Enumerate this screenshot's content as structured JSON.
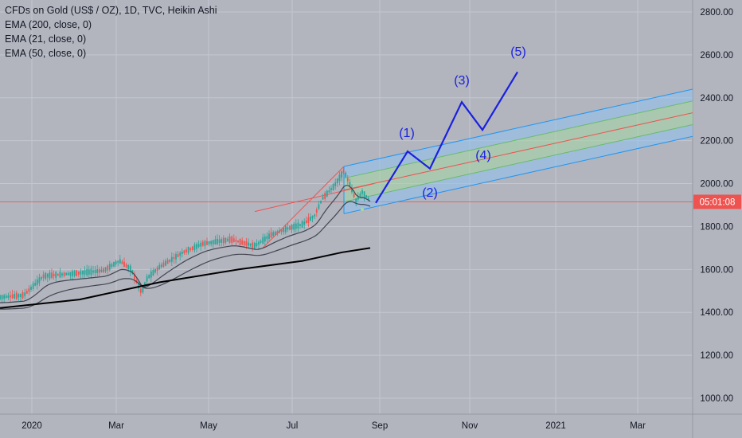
{
  "chart_data": {
    "type": "candlestick",
    "instrument_title": "CFDs on Gold (US$ / OZ), 1D, TVC, Heikin Ashi",
    "indicators": [
      "EMA (200, close, 0)",
      "EMA (21, close, 0)",
      "EMA (50, close, 0)"
    ],
    "y_ticks": [
      "2800.00",
      "2600.00",
      "2400.00",
      "2200.00",
      "2000.00",
      "1800.00",
      "1600.00",
      "1400.00",
      "1200.00",
      "1000.00"
    ],
    "ylim": [
      950,
      2850
    ],
    "x_ticks": [
      "2020",
      "Mar",
      "May",
      "Jul",
      "Sep",
      "Nov",
      "2021",
      "Mar"
    ],
    "current_price_label": "05:01:08",
    "current_price": 1915,
    "wave_labels": [
      "(1)",
      "(2)",
      "(3)",
      "(4)",
      "(5)"
    ],
    "wave_path_values": [
      1910,
      2150,
      2070,
      2380,
      2250,
      2520
    ],
    "channel": {
      "upper_start": 2080,
      "upper_end": 2440,
      "mid_upper_start": 2025,
      "mid_upper_end": 2385,
      "mid_start": 1970,
      "mid_end": 2330,
      "mid_lower_start": 1915,
      "mid_lower_end": 2275,
      "lower_start": 1860,
      "lower_end": 2220
    },
    "colors": {
      "background": "#b2b5be",
      "grid": "#c4c7cf",
      "up_candle": "#26a69a",
      "down_candle": "#ef5350",
      "ema200": "#000000",
      "ema_fast": "#434651",
      "wave": "#1a20e0",
      "price_label_bg": "#ef5350",
      "channel_line": "#2196f3",
      "channel_fill_outer": "#90c2f0",
      "channel_fill_inner": "#a5d6a7",
      "median_line": "#ef5350"
    }
  }
}
